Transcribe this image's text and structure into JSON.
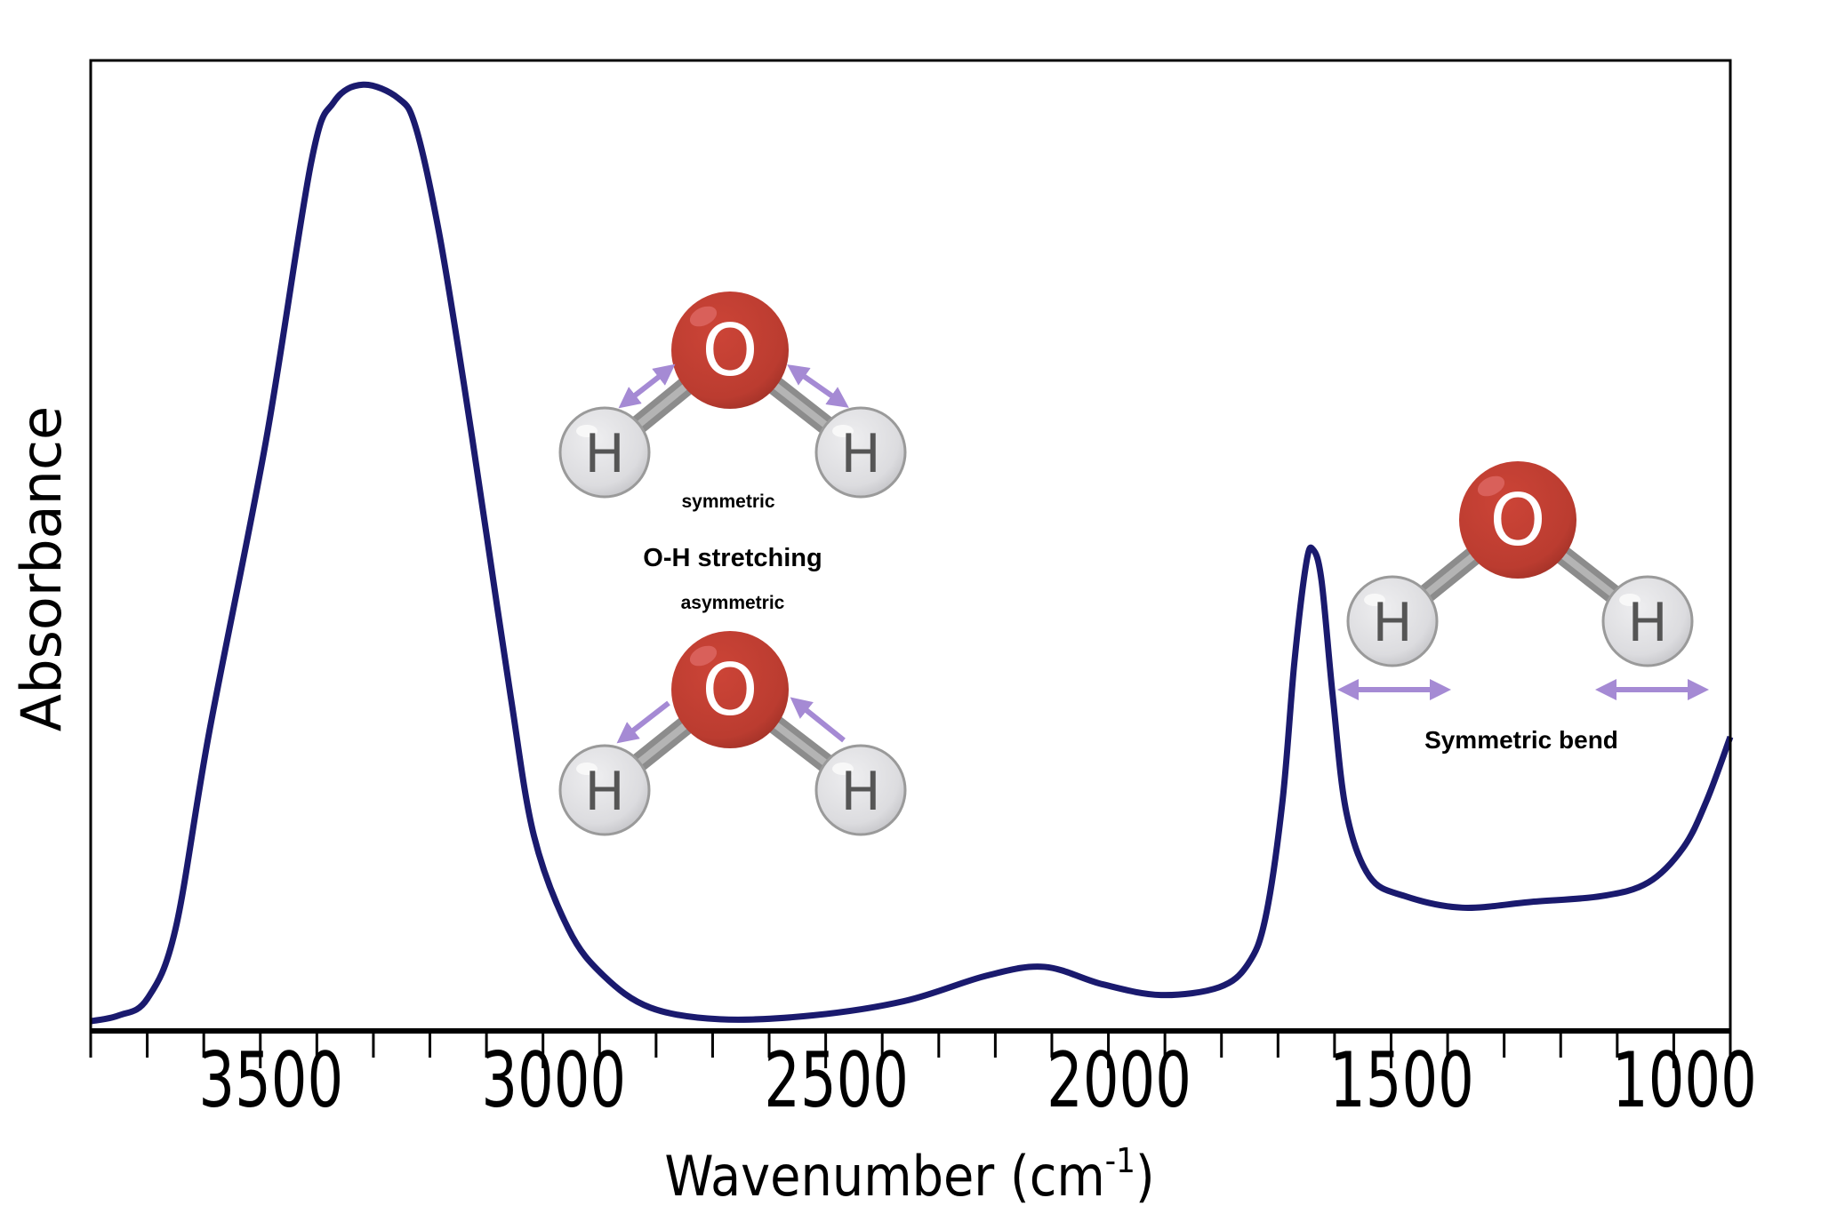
{
  "chart_data": {
    "type": "line",
    "title": "",
    "xlabel": "Wavenumber (cm",
    "xlabel_superscript": "-1",
    "xlabel_close": ")",
    "ylabel": "Absorbance",
    "xlim": [
      3800,
      900
    ],
    "x_reversed": true,
    "ylim": [
      0,
      1
    ],
    "y_ticks_shown": false,
    "grid": false,
    "x_major_ticks": [
      3500,
      3000,
      2500,
      2000,
      1500,
      1000
    ],
    "x_minor_tick_step": 100,
    "line_color": "#1a1a6e",
    "series": [
      {
        "x": [
          3800,
          3750,
          3700,
          3650,
          3590,
          3490,
          3410,
          3370,
          3318,
          3256,
          3225,
          3184,
          3140,
          3100,
          3057,
          3016,
          2955,
          2893,
          2810,
          2687,
          2523,
          2359,
          2215,
          2113,
          2010,
          1907,
          1804,
          1753,
          1722,
          1692,
          1671,
          1650,
          1638,
          1623,
          1603,
          1579,
          1538,
          1476,
          1374,
          1251,
          1127,
          1045,
          983,
          942,
          900
        ],
        "y": [
          0.01,
          0.016,
          0.033,
          0.105,
          0.309,
          0.608,
          0.895,
          0.957,
          0.975,
          0.961,
          0.931,
          0.823,
          0.667,
          0.512,
          0.344,
          0.201,
          0.105,
          0.057,
          0.024,
          0.012,
          0.016,
          0.031,
          0.057,
          0.066,
          0.048,
          0.037,
          0.045,
          0.069,
          0.117,
          0.237,
          0.38,
          0.482,
          0.496,
          0.464,
          0.344,
          0.225,
          0.159,
          0.139,
          0.127,
          0.133,
          0.139,
          0.153,
          0.189,
          0.237,
          0.303
        ]
      }
    ],
    "annotations": {
      "symmetric": "symmetric",
      "stretching": "O-H stretching",
      "asymmetric": "asymmetric",
      "bend": "Symmetric bend"
    },
    "atoms": {
      "oxygen": "O",
      "hydrogen": "H"
    },
    "colors": {
      "oxygen": "#c0392b",
      "hydrogen": "#dcdcdf",
      "bond": "#9a9a9a",
      "arrow": "#a58ad4"
    }
  }
}
